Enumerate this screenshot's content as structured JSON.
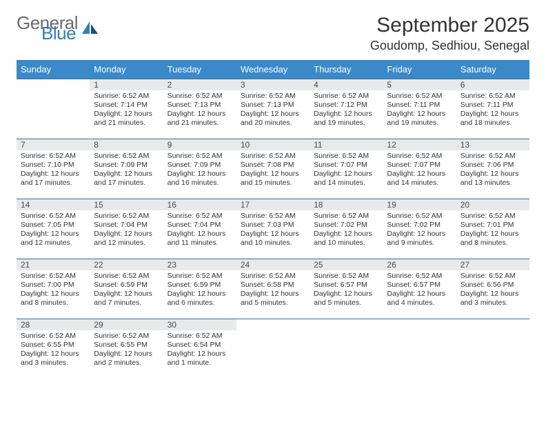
{
  "brand": {
    "word_a": "General",
    "word_b": "Blue"
  },
  "title": "September 2025",
  "location": "Goudomp, Sedhiou, Senegal",
  "colors": {
    "header_bg": "#3a89c9",
    "header_fg": "#ffffff",
    "daynum_bg": "#e7e9eb",
    "daynum_fg": "#4a4a4a",
    "row_divider": "#2f6ea3",
    "brand_gray": "#6a6a6a",
    "brand_blue": "#2f7ec0",
    "text": "#333333"
  },
  "layout": {
    "header_fontsize": 13,
    "daynum_fontsize": 12,
    "body_fontsize": 10.5,
    "title_fontsize": 30,
    "location_fontsize": 18
  },
  "weekdays": [
    "Sunday",
    "Monday",
    "Tuesday",
    "Wednesday",
    "Thursday",
    "Friday",
    "Saturday"
  ],
  "weeks": [
    [
      null,
      {
        "n": "1",
        "sr": "Sunrise: 6:52 AM",
        "ss": "Sunset: 7:14 PM",
        "d1": "Daylight: 12 hours",
        "d2": "and 21 minutes."
      },
      {
        "n": "2",
        "sr": "Sunrise: 6:52 AM",
        "ss": "Sunset: 7:13 PM",
        "d1": "Daylight: 12 hours",
        "d2": "and 21 minutes."
      },
      {
        "n": "3",
        "sr": "Sunrise: 6:52 AM",
        "ss": "Sunset: 7:13 PM",
        "d1": "Daylight: 12 hours",
        "d2": "and 20 minutes."
      },
      {
        "n": "4",
        "sr": "Sunrise: 6:52 AM",
        "ss": "Sunset: 7:12 PM",
        "d1": "Daylight: 12 hours",
        "d2": "and 19 minutes."
      },
      {
        "n": "5",
        "sr": "Sunrise: 6:52 AM",
        "ss": "Sunset: 7:11 PM",
        "d1": "Daylight: 12 hours",
        "d2": "and 19 minutes."
      },
      {
        "n": "6",
        "sr": "Sunrise: 6:52 AM",
        "ss": "Sunset: 7:11 PM",
        "d1": "Daylight: 12 hours",
        "d2": "and 18 minutes."
      }
    ],
    [
      {
        "n": "7",
        "sr": "Sunrise: 6:52 AM",
        "ss": "Sunset: 7:10 PM",
        "d1": "Daylight: 12 hours",
        "d2": "and 17 minutes."
      },
      {
        "n": "8",
        "sr": "Sunrise: 6:52 AM",
        "ss": "Sunset: 7:09 PM",
        "d1": "Daylight: 12 hours",
        "d2": "and 17 minutes."
      },
      {
        "n": "9",
        "sr": "Sunrise: 6:52 AM",
        "ss": "Sunset: 7:09 PM",
        "d1": "Daylight: 12 hours",
        "d2": "and 16 minutes."
      },
      {
        "n": "10",
        "sr": "Sunrise: 6:52 AM",
        "ss": "Sunset: 7:08 PM",
        "d1": "Daylight: 12 hours",
        "d2": "and 15 minutes."
      },
      {
        "n": "11",
        "sr": "Sunrise: 6:52 AM",
        "ss": "Sunset: 7:07 PM",
        "d1": "Daylight: 12 hours",
        "d2": "and 14 minutes."
      },
      {
        "n": "12",
        "sr": "Sunrise: 6:52 AM",
        "ss": "Sunset: 7:07 PM",
        "d1": "Daylight: 12 hours",
        "d2": "and 14 minutes."
      },
      {
        "n": "13",
        "sr": "Sunrise: 6:52 AM",
        "ss": "Sunset: 7:06 PM",
        "d1": "Daylight: 12 hours",
        "d2": "and 13 minutes."
      }
    ],
    [
      {
        "n": "14",
        "sr": "Sunrise: 6:52 AM",
        "ss": "Sunset: 7:05 PM",
        "d1": "Daylight: 12 hours",
        "d2": "and 12 minutes."
      },
      {
        "n": "15",
        "sr": "Sunrise: 6:52 AM",
        "ss": "Sunset: 7:04 PM",
        "d1": "Daylight: 12 hours",
        "d2": "and 12 minutes."
      },
      {
        "n": "16",
        "sr": "Sunrise: 6:52 AM",
        "ss": "Sunset: 7:04 PM",
        "d1": "Daylight: 12 hours",
        "d2": "and 11 minutes."
      },
      {
        "n": "17",
        "sr": "Sunrise: 6:52 AM",
        "ss": "Sunset: 7:03 PM",
        "d1": "Daylight: 12 hours",
        "d2": "and 10 minutes."
      },
      {
        "n": "18",
        "sr": "Sunrise: 6:52 AM",
        "ss": "Sunset: 7:02 PM",
        "d1": "Daylight: 12 hours",
        "d2": "and 10 minutes."
      },
      {
        "n": "19",
        "sr": "Sunrise: 6:52 AM",
        "ss": "Sunset: 7:02 PM",
        "d1": "Daylight: 12 hours",
        "d2": "and 9 minutes."
      },
      {
        "n": "20",
        "sr": "Sunrise: 6:52 AM",
        "ss": "Sunset: 7:01 PM",
        "d1": "Daylight: 12 hours",
        "d2": "and 8 minutes."
      }
    ],
    [
      {
        "n": "21",
        "sr": "Sunrise: 6:52 AM",
        "ss": "Sunset: 7:00 PM",
        "d1": "Daylight: 12 hours",
        "d2": "and 8 minutes."
      },
      {
        "n": "22",
        "sr": "Sunrise: 6:52 AM",
        "ss": "Sunset: 6:59 PM",
        "d1": "Daylight: 12 hours",
        "d2": "and 7 minutes."
      },
      {
        "n": "23",
        "sr": "Sunrise: 6:52 AM",
        "ss": "Sunset: 6:59 PM",
        "d1": "Daylight: 12 hours",
        "d2": "and 6 minutes."
      },
      {
        "n": "24",
        "sr": "Sunrise: 6:52 AM",
        "ss": "Sunset: 6:58 PM",
        "d1": "Daylight: 12 hours",
        "d2": "and 5 minutes."
      },
      {
        "n": "25",
        "sr": "Sunrise: 6:52 AM",
        "ss": "Sunset: 6:57 PM",
        "d1": "Daylight: 12 hours",
        "d2": "and 5 minutes."
      },
      {
        "n": "26",
        "sr": "Sunrise: 6:52 AM",
        "ss": "Sunset: 6:57 PM",
        "d1": "Daylight: 12 hours",
        "d2": "and 4 minutes."
      },
      {
        "n": "27",
        "sr": "Sunrise: 6:52 AM",
        "ss": "Sunset: 6:56 PM",
        "d1": "Daylight: 12 hours",
        "d2": "and 3 minutes."
      }
    ],
    [
      {
        "n": "28",
        "sr": "Sunrise: 6:52 AM",
        "ss": "Sunset: 6:55 PM",
        "d1": "Daylight: 12 hours",
        "d2": "and 3 minutes."
      },
      {
        "n": "29",
        "sr": "Sunrise: 6:52 AM",
        "ss": "Sunset: 6:55 PM",
        "d1": "Daylight: 12 hours",
        "d2": "and 2 minutes."
      },
      {
        "n": "30",
        "sr": "Sunrise: 6:52 AM",
        "ss": "Sunset: 6:54 PM",
        "d1": "Daylight: 12 hours",
        "d2": "and 1 minute."
      },
      null,
      null,
      null,
      null
    ]
  ]
}
